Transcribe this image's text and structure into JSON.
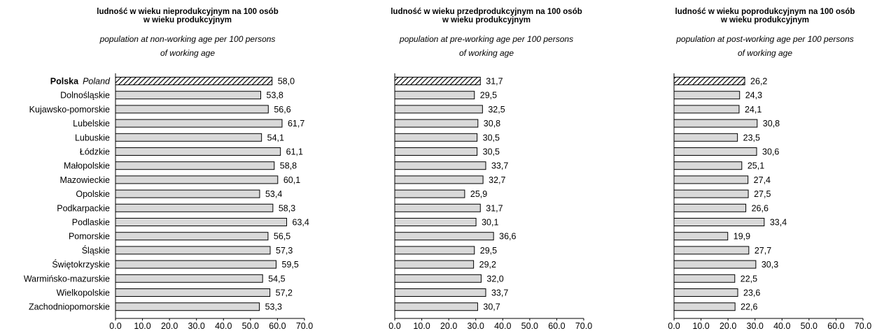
{
  "hatch_color": "#000000",
  "bar_fill": "#d9d9d9",
  "bar_stroke": "#000000",
  "chart_data": [
    {
      "type": "bar",
      "orientation": "horizontal",
      "title": "ludność w wieku nieprodukcyjnym na 100 osób w wieku produkcyjnym",
      "title_lines": [
        "ludność w wieku nieprodukcyjnym na 100 osób",
        "w wieku produkcyjnym"
      ],
      "subtitle_lines": [
        "population at non-working age per 100 persons",
        "of working age"
      ],
      "highlight": {
        "label": "Polska",
        "label_en": "Poland"
      },
      "categories": [
        "Polska",
        "Dolnośląskie",
        "Kujawsko-pomorskie",
        "Lubelskie",
        "Lubuskie",
        "Łódzkie",
        "Małopolskie",
        "Mazowieckie",
        "Opolskie",
        "Podkarpackie",
        "Podlaskie",
        "Pomorskie",
        "Śląskie",
        "Świętokrzyskie",
        "Warmińsko-mazurskie",
        "Wielkopolskie",
        "Zachodniopomorskie"
      ],
      "values": [
        58.0,
        53.8,
        56.6,
        61.7,
        54.1,
        61.1,
        58.8,
        60.1,
        53.4,
        58.3,
        63.4,
        56.5,
        57.3,
        59.5,
        54.5,
        57.2,
        53.3
      ],
      "value_labels": [
        "58,0",
        "53,8",
        "56,6",
        "61,7",
        "54,1",
        "61,1",
        "58,8",
        "60,1",
        "53,4",
        "58,3",
        "63,4",
        "56,5",
        "57,3",
        "59,5",
        "54,5",
        "57,2",
        "53,3"
      ],
      "xlim": [
        0,
        70
      ],
      "xticks": [
        "0.0",
        "10.0",
        "20.0",
        "30.0",
        "40.0",
        "50.0",
        "60.0",
        "70.0"
      ],
      "show_category_labels": true
    },
    {
      "type": "bar",
      "orientation": "horizontal",
      "title": "ludność w wieku przedprodukcyjnym na 100 osób w wieku produkcyjnym",
      "title_lines": [
        "ludność w wieku przedprodukcyjnym na 100 osób",
        "w wieku produkcyjnym"
      ],
      "subtitle_lines": [
        "population at pre-working age per 100 persons",
        "of working age"
      ],
      "values": [
        31.7,
        29.5,
        32.5,
        30.8,
        30.5,
        30.5,
        33.7,
        32.7,
        25.9,
        31.7,
        30.1,
        36.6,
        29.5,
        29.2,
        32.0,
        33.7,
        30.7
      ],
      "value_labels": [
        "31,7",
        "29,5",
        "32,5",
        "30,8",
        "30,5",
        "30,5",
        "33,7",
        "32,7",
        "25,9",
        "31,7",
        "30,1",
        "36,6",
        "29,5",
        "29,2",
        "32,0",
        "33,7",
        "30,7"
      ],
      "xlim": [
        0,
        70
      ],
      "xticks": [
        "0.0",
        "10.0",
        "20.0",
        "30.0",
        "40.0",
        "50.0",
        "60.0",
        "70.0"
      ],
      "show_category_labels": false
    },
    {
      "type": "bar",
      "orientation": "horizontal",
      "title": "ludność w wieku poprodukcyjnym na 100 osób w wieku produkcyjnym",
      "title_lines": [
        "ludność w wieku poprodukcyjnym na 100 osób",
        "w wieku produkcyjnym"
      ],
      "subtitle_lines": [
        "population at post-working age per 100 persons",
        "of working age"
      ],
      "values": [
        26.2,
        24.3,
        24.1,
        30.8,
        23.5,
        30.6,
        25.1,
        27.4,
        27.5,
        26.6,
        33.4,
        19.9,
        27.7,
        30.3,
        22.5,
        23.6,
        22.6
      ],
      "value_labels": [
        "26,2",
        "24,3",
        "24,1",
        "30,8",
        "23,5",
        "30,6",
        "25,1",
        "27,4",
        "27,5",
        "26,6",
        "33,4",
        "19,9",
        "27,7",
        "30,3",
        "22,5",
        "23,6",
        "22,6"
      ],
      "xlim": [
        0,
        70
      ],
      "xticks": [
        "0.0",
        "10.0",
        "20.0",
        "30.0",
        "40.0",
        "50.0",
        "60.0",
        "70.0"
      ],
      "show_category_labels": false
    }
  ]
}
